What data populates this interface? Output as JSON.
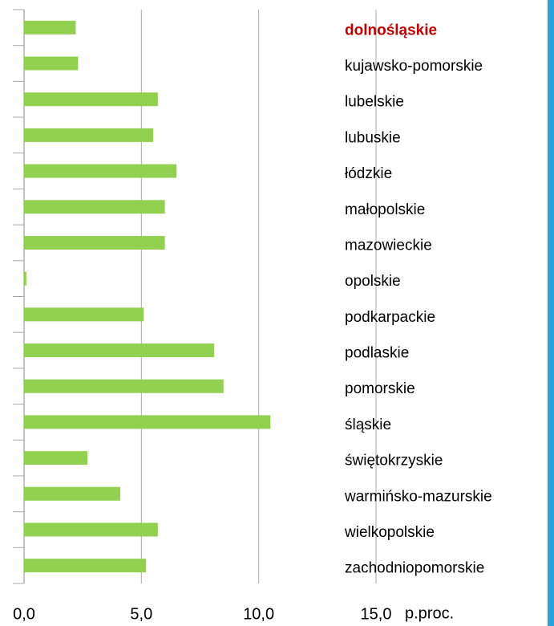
{
  "chart_data": {
    "type": "barh",
    "categories": [
      "dolnośląskie",
      "kujawsko-pomorskie",
      "lubelskie",
      "lubuskie",
      "łódzkie",
      "małopolskie",
      "mazowieckie",
      "opolskie",
      "podkarpackie",
      "podlaskie",
      "pomorskie",
      "śląskie",
      "świętokrzyskie",
      "warmińsko-mazurskie",
      "wielkopolskie",
      "zachodniopomorskie"
    ],
    "values": [
      2.2,
      2.3,
      5.7,
      5.5,
      6.5,
      6.0,
      6.0,
      0.1,
      5.1,
      8.1,
      8.5,
      10.5,
      2.7,
      4.1,
      5.7,
      5.2
    ],
    "color": "#92d050",
    "category_colors": [
      "#c00000",
      "#000000",
      "#000000",
      "#000000",
      "#000000",
      "#000000",
      "#000000",
      "#000000",
      "#000000",
      "#000000",
      "#000000",
      "#000000",
      "#000000",
      "#000000",
      "#000000",
      "#000000"
    ],
    "xlabel": "p.proc.",
    "xlim": [
      0,
      15
    ],
    "xticks": [
      {
        "value": 0,
        "label": "0,0"
      },
      {
        "value": 5,
        "label": "5,0"
      },
      {
        "value": 10,
        "label": "10,0"
      },
      {
        "value": 15,
        "label": "15,0"
      }
    ],
    "grid": true
  }
}
